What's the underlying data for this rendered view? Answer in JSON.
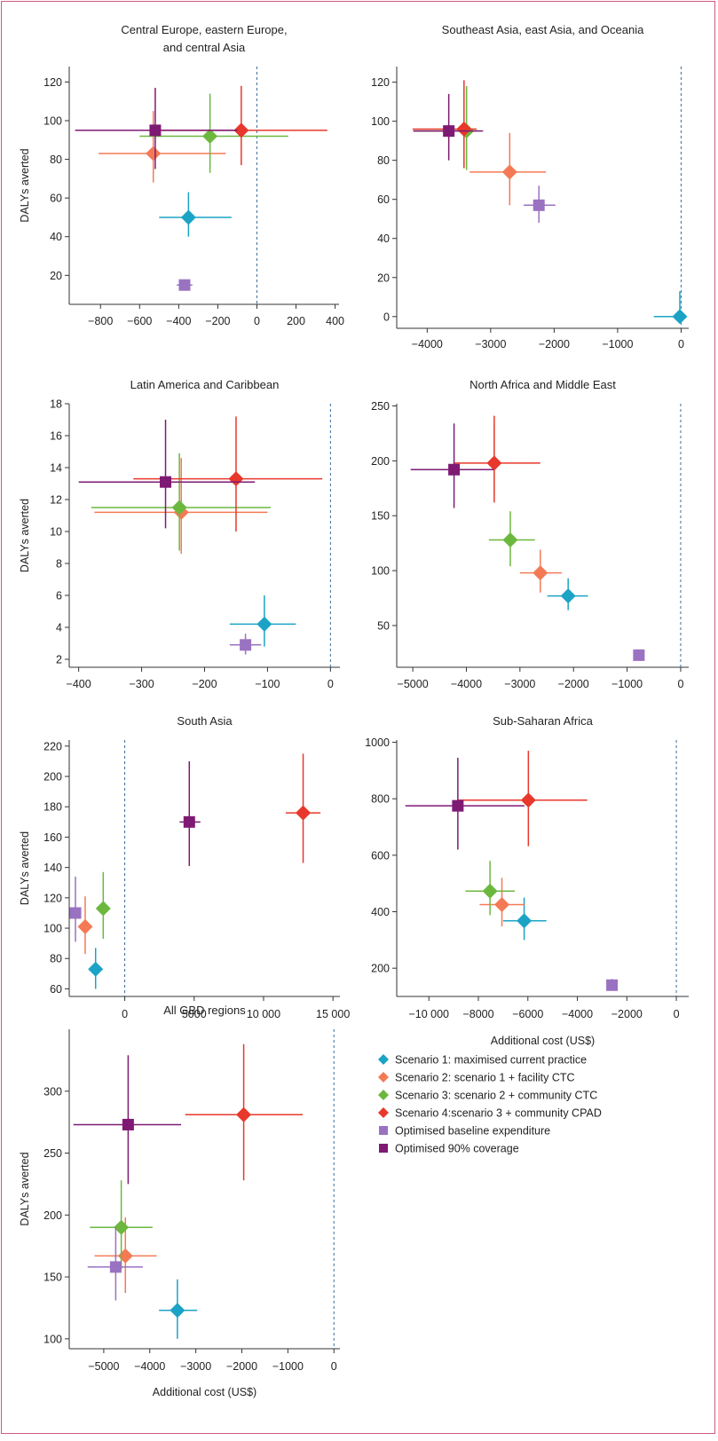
{
  "colors": {
    "s1": "#1ba3c5",
    "s2": "#f47a55",
    "s3": "#6cb83e",
    "s4": "#e8372b",
    "base": "#9a72c2",
    "cov90": "#7e1a73",
    "frame": "#d05a83",
    "zero_line": "#3a6c9a"
  },
  "legend": {
    "items": [
      {
        "key": "s1",
        "label": "Scenario 1: maximised current practice",
        "shape": "diamond"
      },
      {
        "key": "s2",
        "label": "Scenario 2: scenario 1 + facility CTC",
        "shape": "diamond"
      },
      {
        "key": "s3",
        "label": "Scenario 3: scenario 2 + community CTC",
        "shape": "diamond"
      },
      {
        "key": "s4",
        "label": "Scenario 4:scenario 3 + community CPAD",
        "shape": "diamond"
      },
      {
        "key": "base",
        "label": "Optimised baseline expenditure",
        "shape": "square"
      },
      {
        "key": "cov90",
        "label": "Optimised 90% coverage",
        "shape": "square"
      }
    ]
  },
  "chart_data": [
    {
      "type": "scatter",
      "title": "Central Europe, eastern Europe,\nand central Asia",
      "xlabel": "",
      "ylabel": "DALYs averted",
      "xlim": [
        -960,
        420
      ],
      "ylim": [
        5,
        128
      ],
      "xticks": [
        -800,
        -600,
        -400,
        -200,
        0,
        200,
        400
      ],
      "xtick_labels": [
        "−800",
        "−600",
        "−400",
        "−200",
        "0",
        "200",
        "400"
      ],
      "yticks": [
        20,
        40,
        60,
        80,
        100,
        120
      ],
      "ytick_labels": [
        "20",
        "40",
        "60",
        "80",
        "100",
        "120"
      ],
      "zero_line": true,
      "points": [
        {
          "series": "s1",
          "x": -350,
          "y": 50,
          "xlo": -500,
          "xhi": -130,
          "ylo": 40,
          "yhi": 63
        },
        {
          "series": "s2",
          "x": -530,
          "y": 83,
          "xlo": -810,
          "xhi": -160,
          "ylo": 68,
          "yhi": 105
        },
        {
          "series": "s3",
          "x": -240,
          "y": 92,
          "xlo": -600,
          "xhi": 160,
          "ylo": 73,
          "yhi": 114
        },
        {
          "series": "s4",
          "x": -80,
          "y": 95,
          "xlo": -530,
          "xhi": 360,
          "ylo": 77,
          "yhi": 118
        },
        {
          "series": "base",
          "x": -370,
          "y": 15,
          "xlo": -410,
          "xhi": -330,
          "ylo": 13,
          "yhi": 17
        },
        {
          "series": "cov90",
          "x": -520,
          "y": 95,
          "xlo": -930,
          "xhi": -100,
          "ylo": 75,
          "yhi": 117
        }
      ]
    },
    {
      "type": "scatter",
      "title": "Southeast Asia, east Asia, and Oceania",
      "xlabel": "",
      "ylabel": "",
      "xlim": [
        -4480,
        120
      ],
      "ylim": [
        -6,
        128
      ],
      "xticks": [
        -4000,
        -3000,
        -2000,
        -1000,
        0
      ],
      "xtick_labels": [
        "−4000",
        "−3000",
        "−2000",
        "−1000",
        "0"
      ],
      "yticks": [
        0,
        20,
        40,
        60,
        80,
        100,
        120
      ],
      "ytick_labels": [
        "0",
        "20",
        "40",
        "60",
        "80",
        "100",
        "120"
      ],
      "zero_line": true,
      "points": [
        {
          "series": "s1",
          "x": -20,
          "y": 0,
          "xlo": -430,
          "xhi": 80,
          "ylo": -3,
          "yhi": 13
        },
        {
          "series": "s2",
          "x": -2700,
          "y": 74,
          "xlo": -3330,
          "xhi": -2130,
          "ylo": 57,
          "yhi": 94
        },
        {
          "series": "s3",
          "x": -3380,
          "y": 95,
          "xlo": -4200,
          "xhi": -3200,
          "ylo": 75,
          "yhi": 118
        },
        {
          "series": "s4",
          "x": -3420,
          "y": 96,
          "xlo": -4230,
          "xhi": -3220,
          "ylo": 76,
          "yhi": 121
        },
        {
          "series": "base",
          "x": -2240,
          "y": 57,
          "xlo": -2480,
          "xhi": -1980,
          "ylo": 48,
          "yhi": 67
        },
        {
          "series": "cov90",
          "x": -3660,
          "y": 95,
          "xlo": -4220,
          "xhi": -3120,
          "ylo": 80,
          "yhi": 114
        }
      ]
    },
    {
      "type": "scatter",
      "title": "Latin America and Caribbean",
      "xlabel": "",
      "ylabel": "DALYs averted",
      "xlim": [
        -415,
        15
      ],
      "ylim": [
        1.5,
        18
      ],
      "xticks": [
        -400,
        -300,
        -200,
        -100,
        0
      ],
      "xtick_labels": [
        "−400",
        "−300",
        "−200",
        "−100",
        "0"
      ],
      "yticks": [
        2,
        4,
        6,
        8,
        10,
        12,
        14,
        16,
        18
      ],
      "ytick_labels": [
        "2",
        "4",
        "6",
        "8",
        "10",
        "12",
        "14",
        "16",
        "18"
      ],
      "zero_line": true,
      "points": [
        {
          "series": "s1",
          "x": -105,
          "y": 4.2,
          "xlo": -160,
          "xhi": -55,
          "ylo": 2.8,
          "yhi": 6
        },
        {
          "series": "s2",
          "x": -237,
          "y": 11.2,
          "xlo": -375,
          "xhi": -100,
          "ylo": 8.6,
          "yhi": 14.6
        },
        {
          "series": "s3",
          "x": -240,
          "y": 11.5,
          "xlo": -380,
          "xhi": -95,
          "ylo": 8.8,
          "yhi": 14.9
        },
        {
          "series": "s4",
          "x": -150,
          "y": 13.3,
          "xlo": -313,
          "xhi": -13,
          "ylo": 10,
          "yhi": 17.2
        },
        {
          "series": "base",
          "x": -135,
          "y": 2.9,
          "xlo": -160,
          "xhi": -110,
          "ylo": 2.3,
          "yhi": 3.6
        },
        {
          "series": "cov90",
          "x": -262,
          "y": 13.1,
          "xlo": -400,
          "xhi": -120,
          "ylo": 10.2,
          "yhi": 17
        }
      ]
    },
    {
      "type": "scatter",
      "title": "North Africa and Middle East",
      "xlabel": "",
      "ylabel": "",
      "xlim": [
        -5300,
        150
      ],
      "ylim": [
        12,
        252
      ],
      "xticks": [
        -5000,
        -4000,
        -3000,
        -2000,
        -1000,
        0
      ],
      "xtick_labels": [
        "−5000",
        "−4000",
        "−3000",
        "−2000",
        "−1000",
        "0"
      ],
      "yticks": [
        50,
        100,
        150,
        200,
        250
      ],
      "ytick_labels": [
        "50",
        "100",
        "150",
        "200",
        "250"
      ],
      "zero_line": true,
      "points": [
        {
          "series": "s1",
          "x": -2100,
          "y": 77,
          "xlo": -2490,
          "xhi": -1730,
          "ylo": 64,
          "yhi": 93
        },
        {
          "series": "s2",
          "x": -2620,
          "y": 98,
          "xlo": -3000,
          "xhi": -2220,
          "ylo": 80,
          "yhi": 119
        },
        {
          "series": "s3",
          "x": -3180,
          "y": 128,
          "xlo": -3580,
          "xhi": -2720,
          "ylo": 104,
          "yhi": 154
        },
        {
          "series": "s4",
          "x": -3480,
          "y": 198,
          "xlo": -4230,
          "xhi": -2620,
          "ylo": 162,
          "yhi": 241
        },
        {
          "series": "base",
          "x": -780,
          "y": 23,
          "xlo": -820,
          "xhi": -740,
          "ylo": 21,
          "yhi": 25
        },
        {
          "series": "cov90",
          "x": -4230,
          "y": 192,
          "xlo": -5040,
          "xhi": -3490,
          "ylo": 157,
          "yhi": 234
        }
      ]
    },
    {
      "type": "scatter",
      "title": "South Asia",
      "xlabel": "",
      "ylabel": "DALYs averted",
      "xlim": [
        -4000,
        15500
      ],
      "ylim": [
        55,
        224
      ],
      "xticks": [
        0,
        5000,
        10000,
        15000
      ],
      "xtick_labels": [
        "0",
        "5000",
        "10 000",
        "15 000"
      ],
      "yticks": [
        60,
        80,
        100,
        120,
        140,
        160,
        180,
        200,
        220
      ],
      "ytick_labels": [
        "60",
        "80",
        "100",
        "120",
        "140",
        "160",
        "180",
        "200",
        "220"
      ],
      "zero_line": true,
      "points": [
        {
          "series": "s1",
          "x": -2100,
          "y": 73,
          "xlo": -2400,
          "xhi": -1800,
          "ylo": 60,
          "yhi": 87
        },
        {
          "series": "s2",
          "x": -2850,
          "y": 101,
          "xlo": -3250,
          "xhi": -2400,
          "ylo": 83,
          "yhi": 121
        },
        {
          "series": "s3",
          "x": -1550,
          "y": 113,
          "xlo": -1800,
          "xhi": -1300,
          "ylo": 93,
          "yhi": 137
        },
        {
          "series": "s4",
          "x": 12850,
          "y": 176,
          "xlo": 11600,
          "xhi": 14100,
          "ylo": 143,
          "yhi": 215
        },
        {
          "series": "base",
          "x": -3550,
          "y": 110,
          "xlo": -3800,
          "xhi": -3300,
          "ylo": 91,
          "yhi": 134
        },
        {
          "series": "cov90",
          "x": 4650,
          "y": 170,
          "xlo": 3950,
          "xhi": 5450,
          "ylo": 141,
          "yhi": 210
        }
      ]
    },
    {
      "type": "scatter",
      "title": "Sub-Saharan Africa",
      "xlabel": "Additional cost (US$)",
      "ylabel": "",
      "xlim": [
        -11300,
        500
      ],
      "ylim": [
        100,
        1008
      ],
      "xticks": [
        -10000,
        -8000,
        -6000,
        -4000,
        -2000,
        0
      ],
      "xtick_labels": [
        "−10 000",
        "−8000",
        "−6000",
        "−4000",
        "−2000",
        "0"
      ],
      "yticks": [
        200,
        400,
        600,
        800,
        1000
      ],
      "ytick_labels": [
        "200",
        "400",
        "600",
        "800",
        "1000"
      ],
      "zero_line": true,
      "points": [
        {
          "series": "s1",
          "x": -6150,
          "y": 368,
          "xlo": -7000,
          "xhi": -5250,
          "ylo": 300,
          "yhi": 450
        },
        {
          "series": "s2",
          "x": -7050,
          "y": 425,
          "xlo": -7950,
          "xhi": -6120,
          "ylo": 348,
          "yhi": 520
        },
        {
          "series": "s3",
          "x": -7530,
          "y": 473,
          "xlo": -8520,
          "xhi": -6530,
          "ylo": 388,
          "yhi": 580
        },
        {
          "series": "s4",
          "x": -5980,
          "y": 795,
          "xlo": -8820,
          "xhi": -3600,
          "ylo": 632,
          "yhi": 970
        },
        {
          "series": "base",
          "x": -2600,
          "y": 140,
          "xlo": -2780,
          "xhi": -2420,
          "ylo": 120,
          "yhi": 162
        },
        {
          "series": "cov90",
          "x": -8830,
          "y": 775,
          "xlo": -10950,
          "xhi": -6140,
          "ylo": 620,
          "yhi": 945
        }
      ]
    },
    {
      "type": "scatter",
      "title": "All GBD regions",
      "xlabel": "Additional cost (US$)",
      "ylabel": "DALYs averted",
      "xlim": [
        -5750,
        130
      ],
      "ylim": [
        92,
        350
      ],
      "xticks": [
        -5000,
        -4000,
        -3000,
        -2000,
        -1000,
        0
      ],
      "xtick_labels": [
        "−5000",
        "−4000",
        "−3000",
        "−2000",
        "−1000",
        "0"
      ],
      "yticks": [
        100,
        150,
        200,
        250,
        300
      ],
      "ytick_labels": [
        "100",
        "150",
        "200",
        "250",
        "300"
      ],
      "zero_line": true,
      "points": [
        {
          "series": "s1",
          "x": -3400,
          "y": 123,
          "xlo": -3800,
          "xhi": -2970,
          "ylo": 100,
          "yhi": 148
        },
        {
          "series": "s2",
          "x": -4530,
          "y": 167,
          "xlo": -5200,
          "xhi": -3850,
          "ylo": 137,
          "yhi": 198
        },
        {
          "series": "s3",
          "x": -4620,
          "y": 190,
          "xlo": -5300,
          "xhi": -3940,
          "ylo": 156,
          "yhi": 228
        },
        {
          "series": "s4",
          "x": -1960,
          "y": 281,
          "xlo": -3230,
          "xhi": -680,
          "ylo": 228,
          "yhi": 338
        },
        {
          "series": "base",
          "x": -4740,
          "y": 158,
          "xlo": -5350,
          "xhi": -4150,
          "ylo": 131,
          "yhi": 190
        },
        {
          "series": "cov90",
          "x": -4470,
          "y": 273,
          "xlo": -5660,
          "xhi": -3320,
          "ylo": 225,
          "yhi": 329
        }
      ]
    }
  ]
}
